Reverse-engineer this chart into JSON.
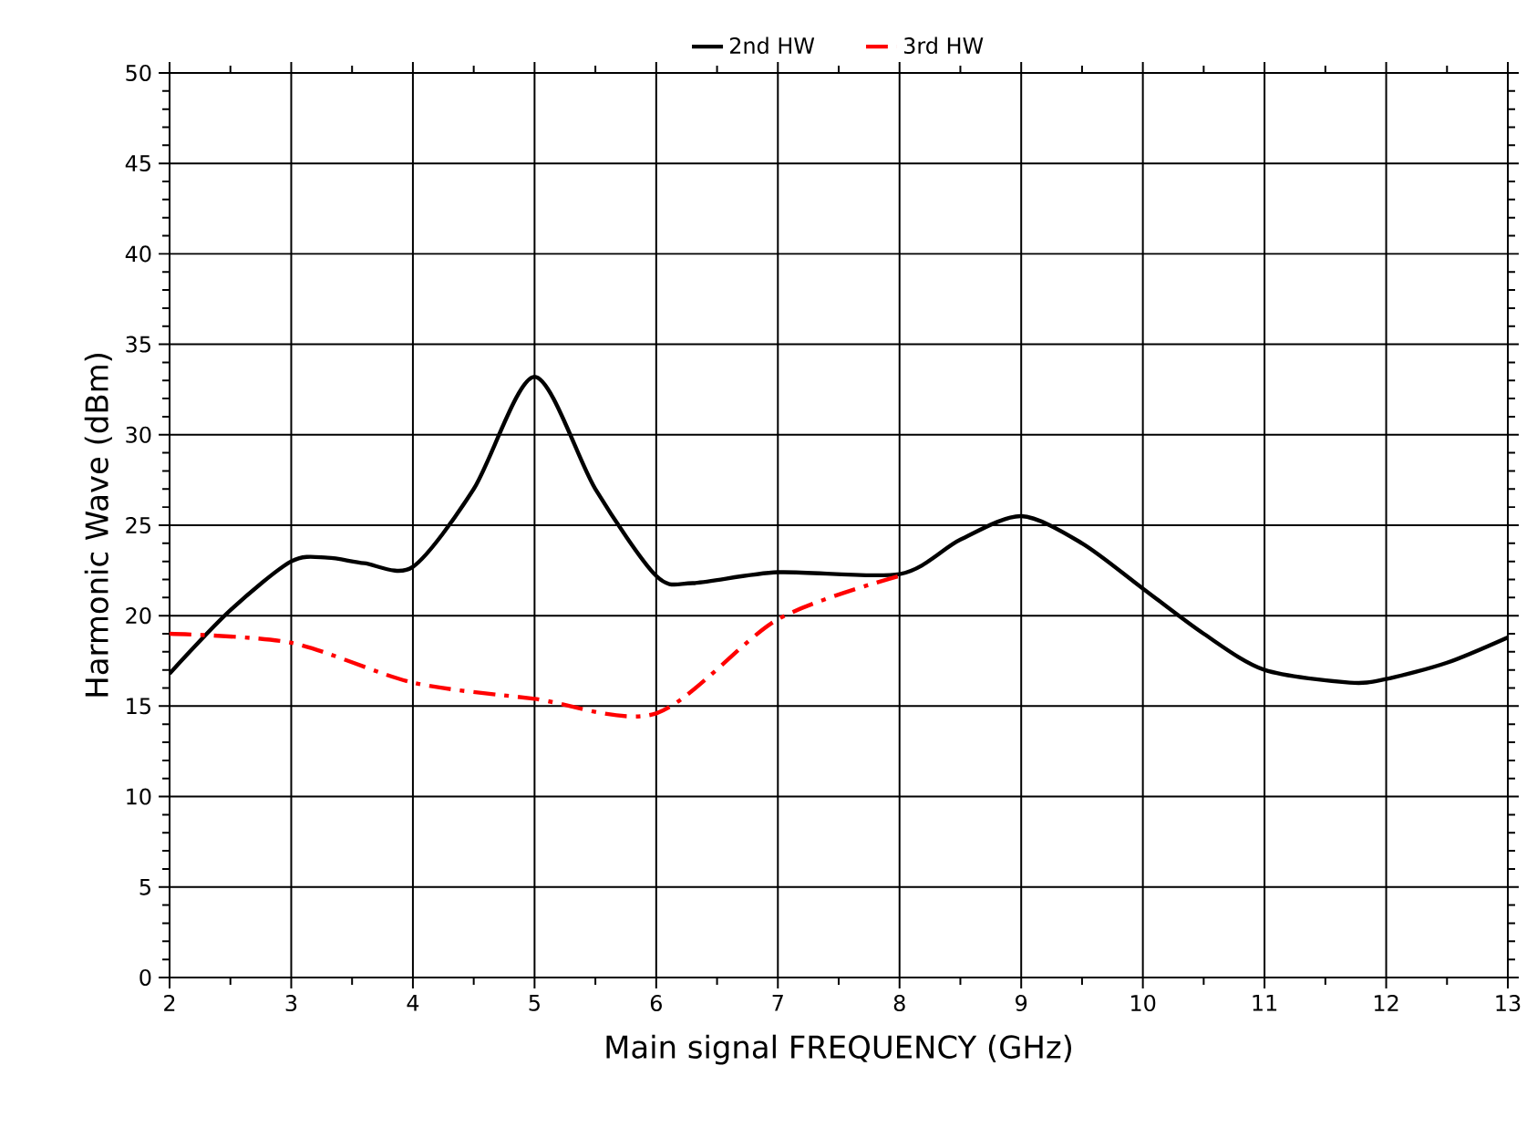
{
  "chart_data": {
    "type": "line",
    "xlabel": "Main signal FREQUENCY  (GHz)",
    "ylabel": "Harmonic Wave  (dBm)",
    "xlim": [
      2,
      13
    ],
    "xticks": [
      2,
      3,
      4,
      5,
      6,
      7,
      8,
      9,
      10,
      11,
      12,
      13
    ],
    "ylim": [
      0,
      50
    ],
    "yticks": [
      0,
      5,
      10,
      15,
      20,
      25,
      30,
      35,
      40,
      45,
      50
    ],
    "grid": true,
    "legend": "top",
    "series": [
      {
        "name": "2nd HW",
        "color": "#000000",
        "line_style": "solid",
        "x": [
          2,
          2.5,
          3,
          3.3,
          3.6,
          4,
          4.5,
          5,
          5.5,
          6,
          6.3,
          7,
          8,
          8.5,
          9,
          9.5,
          10,
          10.5,
          11,
          11.7,
          12,
          12.5,
          13
        ],
        "values": [
          16.8,
          20.3,
          23.0,
          23.2,
          22.9,
          22.7,
          27.0,
          33.2,
          27.0,
          22.2,
          21.8,
          22.4,
          22.3,
          24.2,
          25.5,
          24.0,
          21.5,
          19.0,
          17.0,
          16.3,
          16.5,
          17.4,
          18.8
        ]
      },
      {
        "name": "3rd HW",
        "color": "#ff0000",
        "line_style": "dashdot",
        "x": [
          2,
          3,
          4,
          5,
          6,
          7,
          8
        ],
        "values": [
          19.0,
          18.5,
          16.3,
          15.4,
          14.6,
          19.8,
          22.2
        ]
      }
    ]
  }
}
